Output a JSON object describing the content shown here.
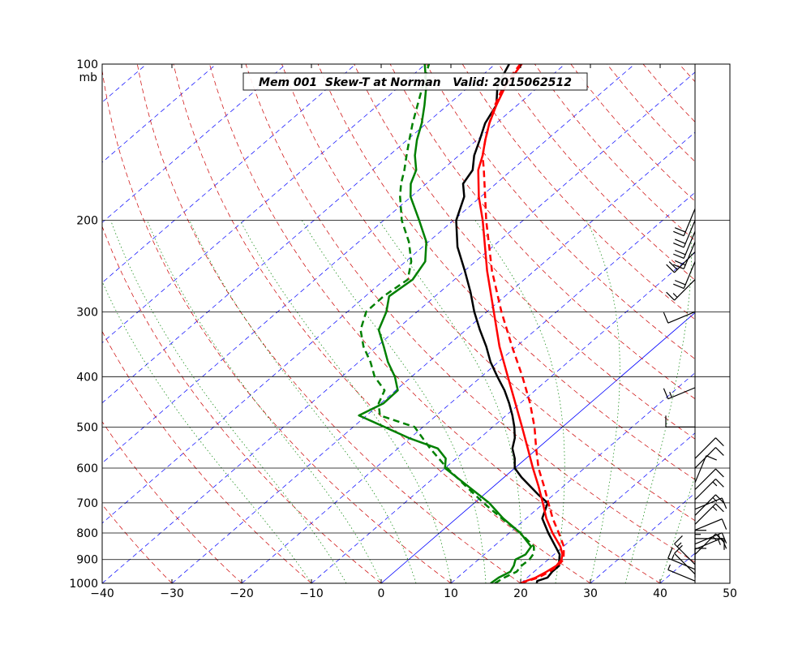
{
  "chart_data": {
    "type": "line",
    "subtype": "skew-t log-p sounding",
    "title": "Mem 001  Skew-T at Norman   Valid: 2015062512",
    "pressure_unit": "mb",
    "xlim": [
      -40,
      50
    ],
    "ylim": [
      1000,
      100
    ],
    "y_scale": "log",
    "x_ticks": [
      -40,
      -30,
      -20,
      -10,
      0,
      10,
      20,
      30,
      40,
      50
    ],
    "pressure_ticks": [
      1000,
      900,
      800,
      700,
      600,
      500,
      400,
      300,
      200,
      100
    ],
    "x_tick_labels": [
      "−40",
      "−30",
      "−20",
      "−10",
      "0",
      "10",
      "20",
      "30",
      "40",
      "50"
    ],
    "pressure_tick_labels": [
      "1000",
      "900",
      "800",
      "700",
      "600",
      "500",
      "400",
      "300",
      "200",
      "100"
    ],
    "grid": true,
    "colors": {
      "temperature": "#000000",
      "dewpoint": "#008000",
      "virtual_temperature": "#ff0000",
      "isotherm": "#0000ff",
      "dry_adiabat": "#cc0000",
      "moist_adiabat": "#008000",
      "isobar": "#000000"
    },
    "series": [
      {
        "key": "temperature",
        "style": "solid",
        "points": [
          [
            1000,
            22.3
          ],
          [
            990,
            22.0
          ],
          [
            975,
            22.9
          ],
          [
            950,
            22.6
          ],
          [
            925,
            22.6
          ],
          [
            900,
            21.6
          ],
          [
            880,
            20.8
          ],
          [
            850,
            18.9
          ],
          [
            800,
            15.6
          ],
          [
            750,
            12.3
          ],
          [
            700,
            10.5
          ],
          [
            675,
            7.8
          ],
          [
            650,
            5.2
          ],
          [
            625,
            2.5
          ],
          [
            600,
            0.0
          ],
          [
            575,
            -1.6
          ],
          [
            550,
            -3.6
          ],
          [
            525,
            -5.0
          ],
          [
            500,
            -6.9
          ],
          [
            475,
            -9.1
          ],
          [
            450,
            -11.6
          ],
          [
            425,
            -14.4
          ],
          [
            400,
            -17.7
          ],
          [
            375,
            -21.1
          ],
          [
            350,
            -24.3
          ],
          [
            325,
            -28.0
          ],
          [
            300,
            -31.8
          ],
          [
            275,
            -35.6
          ],
          [
            250,
            -40.0
          ],
          [
            225,
            -45.0
          ],
          [
            200,
            -49.6
          ],
          [
            180,
            -52.4
          ],
          [
            170,
            -54.7
          ],
          [
            160,
            -55.6
          ],
          [
            150,
            -57.8
          ],
          [
            140,
            -59.6
          ],
          [
            130,
            -61.6
          ],
          [
            120,
            -63.0
          ],
          [
            110,
            -66.1
          ],
          [
            100,
            -68.0
          ]
        ]
      },
      {
        "key": "virtual_temperature",
        "style": "solid",
        "points": [
          [
            1000,
            20.0
          ],
          [
            990,
            20.4
          ],
          [
            975,
            21.2
          ],
          [
            950,
            21.8
          ],
          [
            925,
            22.2
          ],
          [
            900,
            21.9
          ],
          [
            880,
            21.2
          ],
          [
            850,
            19.6
          ],
          [
            800,
            16.2
          ],
          [
            750,
            12.9
          ],
          [
            700,
            9.8
          ],
          [
            650,
            6.4
          ],
          [
            600,
            2.6
          ],
          [
            550,
            -1.4
          ],
          [
            500,
            -5.8
          ],
          [
            450,
            -10.7
          ],
          [
            400,
            -16.2
          ],
          [
            350,
            -22.4
          ],
          [
            300,
            -29.0
          ],
          [
            250,
            -36.8
          ],
          [
            200,
            -45.8
          ],
          [
            180,
            -50.3
          ],
          [
            160,
            -54.8
          ],
          [
            150,
            -56.6
          ],
          [
            140,
            -58.8
          ],
          [
            130,
            -61.0
          ],
          [
            120,
            -63.0
          ],
          [
            110,
            -64.9
          ],
          [
            100,
            -66.2
          ]
        ]
      },
      {
        "key": "virtual_temperature",
        "style": "dashed",
        "points": [
          [
            1000,
            20.0
          ],
          [
            990,
            20.6
          ],
          [
            975,
            21.6
          ],
          [
            950,
            22.2
          ],
          [
            925,
            22.4
          ],
          [
            900,
            22.2
          ],
          [
            850,
            20.1
          ],
          [
            800,
            17.1
          ],
          [
            750,
            13.8
          ],
          [
            700,
            10.6
          ],
          [
            650,
            7.2
          ],
          [
            600,
            3.4
          ],
          [
            550,
            -0.2
          ],
          [
            500,
            -4.0
          ],
          [
            450,
            -8.6
          ],
          [
            400,
            -14.1
          ],
          [
            350,
            -20.6
          ],
          [
            300,
            -27.9
          ],
          [
            250,
            -36.1
          ],
          [
            200,
            -45.3
          ],
          [
            180,
            -49.4
          ],
          [
            160,
            -54.0
          ],
          [
            150,
            -56.6
          ],
          [
            140,
            -58.8
          ],
          [
            130,
            -61.0
          ],
          [
            120,
            -63.2
          ],
          [
            110,
            -65.2
          ],
          [
            100,
            -66.4
          ]
        ]
      },
      {
        "key": "dewpoint",
        "style": "solid",
        "points": [
          [
            1000,
            15.7
          ],
          [
            975,
            15.9
          ],
          [
            950,
            16.6
          ],
          [
            925,
            16.1
          ],
          [
            900,
            15.3
          ],
          [
            880,
            15.9
          ],
          [
            850,
            15.4
          ],
          [
            800,
            11.6
          ],
          [
            750,
            6.7
          ],
          [
            700,
            2.1
          ],
          [
            650,
            -3.7
          ],
          [
            600,
            -10.0
          ],
          [
            575,
            -11.5
          ],
          [
            550,
            -14.3
          ],
          [
            525,
            -20.2
          ],
          [
            500,
            -25.5
          ],
          [
            475,
            -31.1
          ],
          [
            450,
            -29.6
          ],
          [
            425,
            -29.7
          ],
          [
            400,
            -32.4
          ],
          [
            375,
            -35.8
          ],
          [
            350,
            -39.0
          ],
          [
            325,
            -42.5
          ],
          [
            300,
            -44.4
          ],
          [
            280,
            -46.6
          ],
          [
            260,
            -46.0
          ],
          [
            240,
            -47.2
          ],
          [
            220,
            -50.3
          ],
          [
            200,
            -54.9
          ],
          [
            180,
            -60.1
          ],
          [
            170,
            -62.2
          ],
          [
            160,
            -63.7
          ],
          [
            150,
            -66.3
          ],
          [
            140,
            -68.6
          ],
          [
            130,
            -70.7
          ],
          [
            120,
            -73.3
          ],
          [
            110,
            -76.3
          ],
          [
            100,
            -80.1
          ]
        ]
      },
      {
        "key": "dewpoint",
        "style": "dashed",
        "points": [
          [
            1000,
            16.3
          ],
          [
            975,
            16.7
          ],
          [
            950,
            17.5
          ],
          [
            925,
            17.2
          ],
          [
            900,
            17.3
          ],
          [
            875,
            16.9
          ],
          [
            850,
            15.8
          ],
          [
            800,
            11.6
          ],
          [
            750,
            6.5
          ],
          [
            700,
            1.3
          ],
          [
            650,
            -4.0
          ],
          [
            600,
            -9.7
          ],
          [
            550,
            -15.4
          ],
          [
            500,
            -21.2
          ],
          [
            475,
            -28.1
          ],
          [
            450,
            -30.3
          ],
          [
            425,
            -31.6
          ],
          [
            400,
            -35.3
          ],
          [
            375,
            -38.3
          ],
          [
            350,
            -41.9
          ],
          [
            325,
            -45.1
          ],
          [
            300,
            -47.3
          ],
          [
            280,
            -47.4
          ],
          [
            260,
            -46.7
          ],
          [
            240,
            -49.2
          ],
          [
            220,
            -52.8
          ],
          [
            200,
            -57.4
          ],
          [
            180,
            -61.6
          ],
          [
            170,
            -63.6
          ],
          [
            160,
            -65.4
          ],
          [
            150,
            -67.5
          ],
          [
            140,
            -69.7
          ],
          [
            130,
            -72.0
          ],
          [
            120,
            -74.3
          ],
          [
            110,
            -76.8
          ],
          [
            100,
            -79.5
          ]
        ]
      }
    ],
    "wind_barbs": [
      [
        990,
        5,
        5
      ],
      [
        975,
        8,
        10
      ],
      [
        960,
        6,
        10
      ],
      [
        940,
        5,
        15
      ],
      [
        920,
        6,
        15
      ],
      [
        900,
        8,
        15
      ],
      [
        880,
        10,
        15
      ],
      [
        860,
        11,
        15
      ],
      [
        840,
        11,
        15
      ],
      [
        820,
        12,
        10
      ],
      [
        790,
        11,
        10
      ],
      [
        770,
        10,
        15
      ],
      [
        740,
        10,
        15
      ],
      [
        720,
        11,
        10
      ],
      [
        690,
        10,
        15
      ],
      [
        660,
        10,
        10
      ],
      [
        640,
        9,
        10
      ],
      [
        600,
        10,
        10
      ],
      [
        575,
        10,
        10
      ],
      [
        500,
        4,
        10
      ],
      [
        420,
        3,
        15
      ],
      [
        300,
        3,
        10
      ],
      [
        260,
        2,
        15
      ],
      [
        240,
        1,
        20
      ],
      [
        230,
        2,
        20
      ],
      [
        220,
        1,
        20
      ],
      [
        210,
        1,
        20
      ],
      [
        200,
        1,
        20
      ],
      [
        190,
        1,
        20
      ]
    ]
  }
}
